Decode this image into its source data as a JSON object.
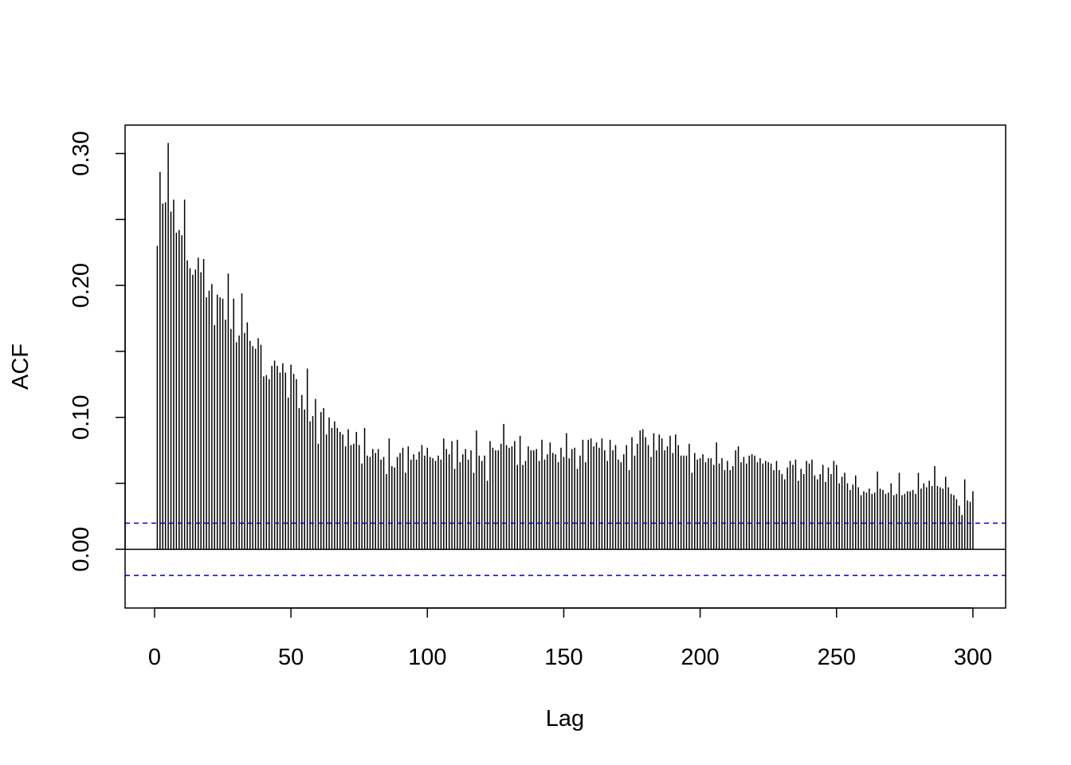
{
  "chart_data": {
    "type": "bar",
    "title": "",
    "xlabel": "Lag",
    "ylabel": "ACF",
    "xlim": [
      -10.8,
      312.0
    ],
    "ylim": [
      -0.0445,
      0.3215
    ],
    "x_ticks": [
      0,
      50,
      100,
      150,
      200,
      250,
      300
    ],
    "x_tick_labels": [
      "0",
      "50",
      "100",
      "150",
      "200",
      "250",
      "300"
    ],
    "y_ticks": [
      0.0,
      0.05,
      0.1,
      0.15,
      0.2,
      0.25,
      0.3
    ],
    "y_tick_labels": [
      "0.00",
      "",
      "0.10",
      "",
      "0.20",
      "",
      "0.30"
    ],
    "confidence_bound": 0.0198,
    "zero_line": 0,
    "grid": false,
    "legend": "none",
    "colors": {
      "bars": "#000000",
      "confidence_lines": "#0000cc",
      "frame": "#000000"
    },
    "lags": [
      1,
      2,
      3,
      4,
      5,
      6,
      7,
      8,
      9,
      10,
      11,
      12,
      13,
      14,
      15,
      16,
      17,
      18,
      19,
      20,
      21,
      22,
      23,
      24,
      25,
      26,
      27,
      28,
      29,
      30,
      31,
      32,
      33,
      34,
      35,
      36,
      37,
      38,
      39,
      40,
      41,
      42,
      43,
      44,
      45,
      46,
      47,
      48,
      49,
      50,
      51,
      52,
      53,
      54,
      55,
      56,
      57,
      58,
      59,
      60,
      61,
      62,
      63,
      64,
      65,
      66,
      67,
      68,
      69,
      70,
      71,
      72,
      73,
      74,
      75,
      76,
      77,
      78,
      79,
      80,
      81,
      82,
      83,
      84,
      85,
      86,
      87,
      88,
      89,
      90,
      91,
      92,
      93,
      94,
      95,
      96,
      97,
      98,
      99,
      100,
      101,
      102,
      103,
      104,
      105,
      106,
      107,
      108,
      109,
      110,
      111,
      112,
      113,
      114,
      115,
      116,
      117,
      118,
      119,
      120,
      121,
      122,
      123,
      124,
      125,
      126,
      127,
      128,
      129,
      130,
      131,
      132,
      133,
      134,
      135,
      136,
      137,
      138,
      139,
      140,
      141,
      142,
      143,
      144,
      145,
      146,
      147,
      148,
      149,
      150,
      151,
      152,
      153,
      154,
      155,
      156,
      157,
      158,
      159,
      160,
      161,
      162,
      163,
      164,
      165,
      166,
      167,
      168,
      169,
      170,
      171,
      172,
      173,
      174,
      175,
      176,
      177,
      178,
      179,
      180,
      181,
      182,
      183,
      184,
      185,
      186,
      187,
      188,
      189,
      190,
      191,
      192,
      193,
      194,
      195,
      196,
      197,
      198,
      199,
      200,
      201,
      202,
      203,
      204,
      205,
      206,
      207,
      208,
      209,
      210,
      211,
      212,
      213,
      214,
      215,
      216,
      217,
      218,
      219,
      220,
      221,
      222,
      223,
      224,
      225,
      226,
      227,
      228,
      229,
      230,
      231,
      232,
      233,
      234,
      235,
      236,
      237,
      238,
      239,
      240,
      241,
      242,
      243,
      244,
      245,
      246,
      247,
      248,
      249,
      250,
      251,
      252,
      253,
      254,
      255,
      256,
      257,
      258,
      259,
      260,
      261,
      262,
      263,
      264,
      265,
      266,
      267,
      268,
      269,
      270,
      271,
      272,
      273,
      274,
      275,
      276,
      277,
      278,
      279,
      280,
      281,
      282,
      283,
      284,
      285,
      286,
      287,
      288,
      289,
      290,
      291,
      292,
      293,
      294,
      295,
      296,
      297,
      298,
      299,
      300
    ],
    "values": [
      0.23,
      0.286,
      0.262,
      0.263,
      0.308,
      0.256,
      0.265,
      0.24,
      0.242,
      0.238,
      0.265,
      0.219,
      0.213,
      0.208,
      0.212,
      0.221,
      0.21,
      0.22,
      0.191,
      0.196,
      0.201,
      0.17,
      0.193,
      0.191,
      0.19,
      0.174,
      0.209,
      0.167,
      0.19,
      0.157,
      0.162,
      0.194,
      0.164,
      0.172,
      0.158,
      0.154,
      0.152,
      0.16,
      0.155,
      0.131,
      0.132,
      0.129,
      0.139,
      0.143,
      0.139,
      0.134,
      0.141,
      0.134,
      0.115,
      0.14,
      0.133,
      0.129,
      0.107,
      0.117,
      0.106,
      0.137,
      0.097,
      0.101,
      0.114,
      0.08,
      0.104,
      0.107,
      0.087,
      0.1,
      0.092,
      0.097,
      0.092,
      0.089,
      0.087,
      0.078,
      0.091,
      0.079,
      0.08,
      0.089,
      0.079,
      0.065,
      0.092,
      0.071,
      0.07,
      0.076,
      0.073,
      0.076,
      0.068,
      0.07,
      0.057,
      0.084,
      0.063,
      0.062,
      0.07,
      0.073,
      0.077,
      0.058,
      0.078,
      0.068,
      0.072,
      0.068,
      0.074,
      0.079,
      0.071,
      0.077,
      0.07,
      0.069,
      0.067,
      0.071,
      0.068,
      0.084,
      0.076,
      0.072,
      0.082,
      0.061,
      0.083,
      0.066,
      0.072,
      0.076,
      0.068,
      0.075,
      0.058,
      0.09,
      0.071,
      0.067,
      0.071,
      0.052,
      0.082,
      0.077,
      0.075,
      0.075,
      0.08,
      0.095,
      0.079,
      0.077,
      0.078,
      0.082,
      0.064,
      0.086,
      0.064,
      0.067,
      0.078,
      0.075,
      0.075,
      0.076,
      0.067,
      0.083,
      0.068,
      0.072,
      0.081,
      0.073,
      0.072,
      0.066,
      0.077,
      0.07,
      0.088,
      0.069,
      0.076,
      0.077,
      0.061,
      0.071,
      0.083,
      0.066,
      0.083,
      0.084,
      0.078,
      0.081,
      0.077,
      0.084,
      0.075,
      0.067,
      0.083,
      0.075,
      0.079,
      0.068,
      0.066,
      0.072,
      0.079,
      0.06,
      0.085,
      0.071,
      0.08,
      0.09,
      0.091,
      0.085,
      0.079,
      0.07,
      0.088,
      0.075,
      0.087,
      0.084,
      0.075,
      0.078,
      0.086,
      0.073,
      0.087,
      0.079,
      0.071,
      0.071,
      0.071,
      0.08,
      0.058,
      0.073,
      0.068,
      0.069,
      0.072,
      0.066,
      0.069,
      0.069,
      0.064,
      0.081,
      0.065,
      0.069,
      0.06,
      0.067,
      0.06,
      0.063,
      0.075,
      0.078,
      0.066,
      0.07,
      0.065,
      0.071,
      0.072,
      0.071,
      0.066,
      0.069,
      0.065,
      0.067,
      0.066,
      0.065,
      0.06,
      0.067,
      0.06,
      0.057,
      0.053,
      0.062,
      0.067,
      0.064,
      0.068,
      0.052,
      0.061,
      0.057,
      0.067,
      0.065,
      0.068,
      0.056,
      0.053,
      0.057,
      0.064,
      0.051,
      0.062,
      0.057,
      0.067,
      0.064,
      0.05,
      0.055,
      0.058,
      0.05,
      0.045,
      0.049,
      0.056,
      0.047,
      0.041,
      0.044,
      0.043,
      0.046,
      0.042,
      0.043,
      0.059,
      0.046,
      0.045,
      0.042,
      0.043,
      0.05,
      0.041,
      0.042,
      0.058,
      0.041,
      0.042,
      0.044,
      0.044,
      0.045,
      0.042,
      0.058,
      0.046,
      0.05,
      0.047,
      0.052,
      0.048,
      0.063,
      0.048,
      0.047,
      0.046,
      0.055,
      0.047,
      0.042,
      0.041,
      0.038,
      0.033,
      0.026,
      0.053,
      0.037,
      0.036,
      0.044
    ]
  }
}
